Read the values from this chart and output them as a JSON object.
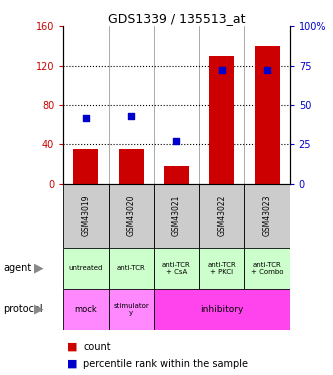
{
  "title": "GDS1339 / 135513_at",
  "samples": [
    "GSM43019",
    "GSM43020",
    "GSM43021",
    "GSM43022",
    "GSM43023"
  ],
  "counts": [
    35,
    35,
    18,
    130,
    140
  ],
  "percentile_ranks": [
    42,
    43,
    27,
    72,
    72
  ],
  "left_ylim": [
    0,
    160
  ],
  "right_ylim": [
    0,
    100
  ],
  "left_yticks": [
    0,
    40,
    80,
    120,
    160
  ],
  "right_yticks": [
    0,
    25,
    50,
    75,
    100
  ],
  "right_yticklabels": [
    "0",
    "25",
    "50",
    "75",
    "100%"
  ],
  "bar_color": "#cc0000",
  "dot_color": "#0000cc",
  "agent_labels": [
    "untreated",
    "anti-TCR",
    "anti-TCR\n+ CsA",
    "anti-TCR\n+ PKCi",
    "anti-TCR\n+ Combo"
  ],
  "agent_color": "#ccffcc",
  "sample_header_color": "#cccccc",
  "left_ylabel_color": "#cc0000",
  "right_ylabel_color": "#0000cc",
  "legend_count_color": "#cc0000",
  "legend_pct_color": "#0000cc",
  "protocol_mock_color": "#ff88ff",
  "protocol_stim_color": "#ff88ff",
  "protocol_inhib_color": "#ff44ee"
}
